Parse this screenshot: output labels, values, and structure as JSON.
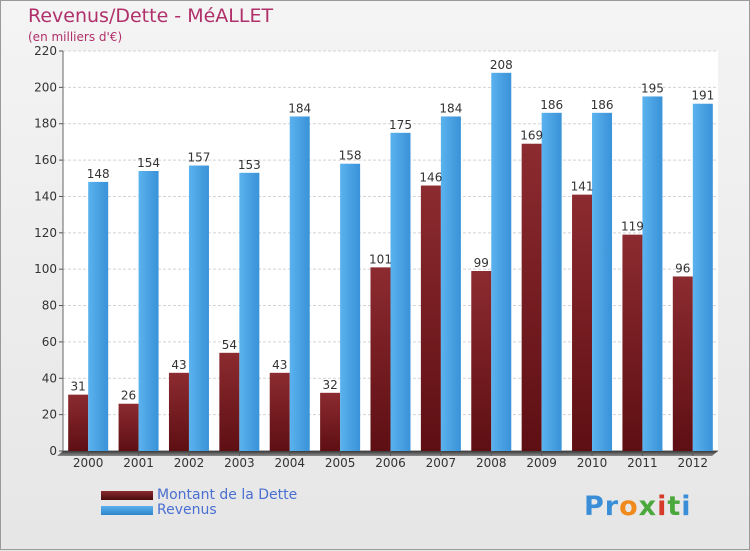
{
  "header": {
    "title": "Revenus/Dette - MéALLET",
    "subtitle": "(en milliers d'€)"
  },
  "legend": {
    "debt_label": "Montant de la Dette",
    "revenue_label": "Revenus"
  },
  "logo": {
    "text": "Proxiti"
  },
  "colors": {
    "debt": "#7b1a1f",
    "revenue": "#3e98dd",
    "title": "#b0306a"
  },
  "chart_data": {
    "type": "bar",
    "categories": [
      "2000",
      "2001",
      "2002",
      "2003",
      "2004",
      "2005",
      "2006",
      "2007",
      "2008",
      "2009",
      "2010",
      "2011",
      "2012"
    ],
    "series": [
      {
        "name": "Montant de la Dette",
        "values": [
          31,
          26,
          43,
          54,
          43,
          32,
          101,
          146,
          99,
          169,
          141,
          119,
          96
        ]
      },
      {
        "name": "Revenus",
        "values": [
          148,
          154,
          157,
          153,
          184,
          158,
          175,
          184,
          208,
          186,
          186,
          195,
          191
        ]
      }
    ],
    "ylim": [
      0,
      220
    ],
    "yticks": [
      0,
      20,
      40,
      60,
      80,
      100,
      120,
      140,
      160,
      180,
      200,
      220
    ],
    "grid": true,
    "legend_position": "bottom-left"
  }
}
